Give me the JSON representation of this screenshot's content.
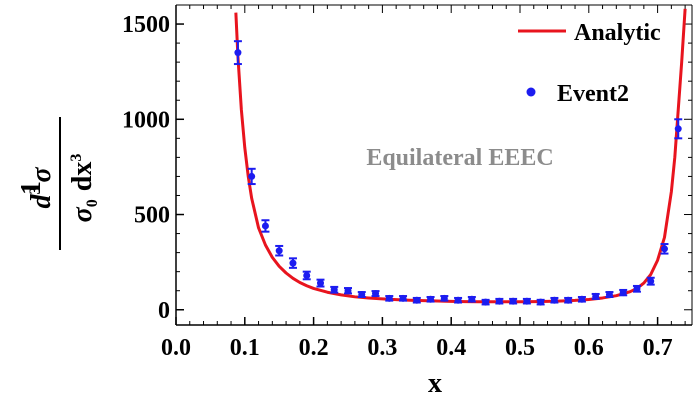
{
  "chart_data": {
    "type": "scatter",
    "title": "",
    "annotation": "Equilateral EEEC",
    "xlabel": "x",
    "ylabel": {
      "prefix": "1",
      "numerator": "d",
      "numerator_power": "3",
      "numerator_symbol": "σ",
      "denominator_symbol": "σ",
      "denominator_subscript": "0",
      "denominator_rest": "dx",
      "denominator_power": "3"
    },
    "xlim": [
      0.0,
      0.75
    ],
    "ylim": [
      -80,
      1600
    ],
    "x_ticks": [
      "0.0",
      "0.1",
      "0.2",
      "0.3",
      "0.4",
      "0.5",
      "0.6",
      "0.7"
    ],
    "y_ticks": [
      "0",
      "500",
      "1000",
      "1500"
    ],
    "grid": false,
    "legend_position": "top-right",
    "colors": {
      "analytic": "#e8141e",
      "event2": "#1c1cf0",
      "annotation": "#8c8c8c"
    },
    "series": [
      {
        "name": "Analytic",
        "kind": "line",
        "x": [
          0.087,
          0.09,
          0.095,
          0.1,
          0.105,
          0.11,
          0.12,
          0.13,
          0.14,
          0.15,
          0.16,
          0.17,
          0.18,
          0.19,
          0.2,
          0.22,
          0.24,
          0.26,
          0.28,
          0.3,
          0.32,
          0.34,
          0.36,
          0.38,
          0.4,
          0.42,
          0.44,
          0.46,
          0.48,
          0.5,
          0.52,
          0.54,
          0.56,
          0.58,
          0.6,
          0.62,
          0.64,
          0.66,
          0.67,
          0.68,
          0.69,
          0.7,
          0.71,
          0.72,
          0.725,
          0.73,
          0.735,
          0.74
        ],
        "y": [
          1560,
          1330,
          1050,
          850,
          700,
          585,
          430,
          340,
          275,
          228,
          193,
          165,
          143,
          126,
          112,
          92,
          78,
          68,
          62,
          57,
          53,
          50,
          48,
          46,
          44,
          43,
          42,
          42,
          42,
          42,
          43,
          44,
          46,
          49,
          54,
          62,
          74,
          95,
          112,
          140,
          185,
          260,
          380,
          620,
          800,
          1050,
          1300,
          1580
        ]
      },
      {
        "name": "Event2",
        "kind": "points",
        "x": [
          0.09,
          0.11,
          0.13,
          0.15,
          0.17,
          0.19,
          0.21,
          0.23,
          0.25,
          0.27,
          0.29,
          0.31,
          0.33,
          0.35,
          0.37,
          0.39,
          0.41,
          0.43,
          0.45,
          0.47,
          0.49,
          0.51,
          0.53,
          0.55,
          0.57,
          0.59,
          0.61,
          0.63,
          0.65,
          0.67,
          0.69,
          0.71,
          0.73
        ],
        "y": [
          1350,
          700,
          440,
          310,
          245,
          180,
          140,
          105,
          100,
          80,
          85,
          60,
          60,
          50,
          55,
          60,
          50,
          55,
          40,
          45,
          45,
          45,
          40,
          50,
          50,
          55,
          70,
          80,
          90,
          110,
          150,
          320,
          950
        ],
        "error": [
          60,
          40,
          30,
          25,
          25,
          20,
          18,
          15,
          14,
          13,
          13,
          12,
          12,
          12,
          12,
          12,
          12,
          12,
          12,
          12,
          12,
          12,
          12,
          12,
          12,
          12,
          13,
          13,
          14,
          15,
          18,
          25,
          50
        ]
      }
    ]
  }
}
